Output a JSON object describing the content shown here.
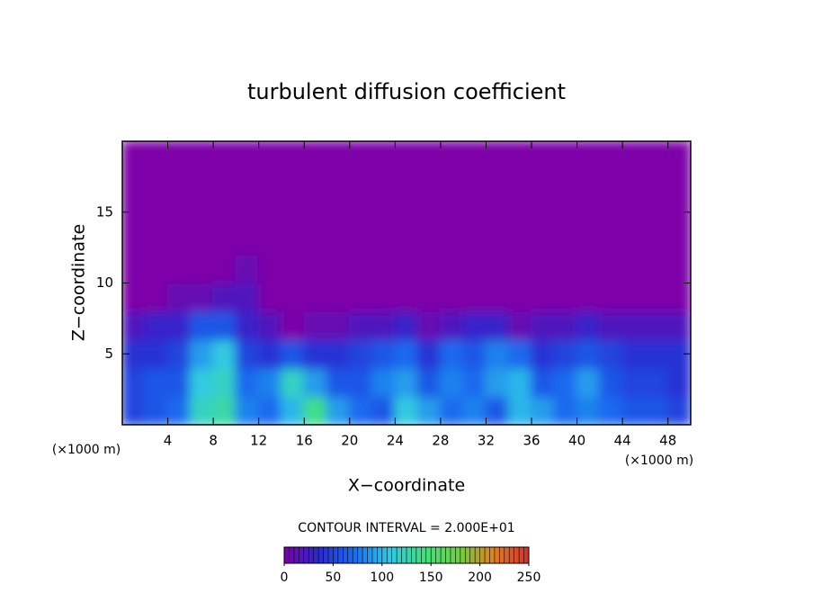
{
  "chart_data": {
    "type": "heatmap",
    "title": "turbulent diffusion coefficient",
    "xlabel": "X−coordinate",
    "ylabel": "Z−coordinate",
    "x_unit": "(×1000 m)",
    "x_unit_right": "(×1000 m)",
    "contour_interval": "CONTOUR INTERVAL = 2.000E+01",
    "xlim": [
      0,
      50
    ],
    "xticks": [
      4,
      8,
      12,
      16,
      20,
      24,
      28,
      32,
      36,
      40,
      44,
      48
    ],
    "ylim": [
      0,
      20
    ],
    "yticks": [
      5,
      10,
      15
    ],
    "x": [
      1,
      3,
      5,
      7,
      9,
      11,
      13,
      15,
      17,
      19,
      21,
      23,
      25,
      27,
      29,
      31,
      33,
      35,
      37,
      39,
      41,
      43,
      45,
      47,
      49
    ],
    "y": [
      1,
      3,
      5,
      7,
      9,
      11,
      13,
      15,
      17,
      19
    ],
    "z": [
      [
        50,
        60,
        70,
        120,
        130,
        80,
        70,
        100,
        140,
        90,
        70,
        60,
        110,
        90,
        70,
        80,
        60,
        100,
        90,
        70,
        80,
        70,
        60,
        60,
        50
      ],
      [
        50,
        60,
        60,
        110,
        120,
        70,
        80,
        120,
        90,
        60,
        60,
        80,
        90,
        60,
        80,
        70,
        90,
        100,
        60,
        70,
        90,
        60,
        50,
        50,
        40
      ],
      [
        40,
        40,
        50,
        90,
        110,
        50,
        40,
        60,
        40,
        40,
        50,
        60,
        70,
        40,
        70,
        60,
        80,
        70,
        40,
        50,
        60,
        50,
        40,
        40,
        40
      ],
      [
        20,
        30,
        30,
        60,
        60,
        30,
        20,
        0,
        10,
        10,
        20,
        20,
        30,
        10,
        20,
        30,
        30,
        10,
        20,
        20,
        30,
        20,
        20,
        20,
        20
      ],
      [
        0,
        0,
        10,
        10,
        20,
        20,
        0,
        0,
        0,
        0,
        0,
        0,
        0,
        0,
        0,
        0,
        0,
        0,
        0,
        0,
        0,
        0,
        0,
        0,
        0
      ],
      [
        0,
        0,
        0,
        0,
        0,
        10,
        0,
        0,
        0,
        0,
        0,
        0,
        0,
        0,
        0,
        0,
        0,
        0,
        0,
        0,
        0,
        0,
        0,
        0,
        0
      ],
      [
        0,
        0,
        0,
        0,
        0,
        0,
        0,
        0,
        0,
        0,
        0,
        0,
        0,
        0,
        0,
        0,
        0,
        0,
        0,
        0,
        0,
        0,
        0,
        0,
        0
      ],
      [
        0,
        0,
        0,
        0,
        0,
        0,
        0,
        0,
        0,
        0,
        0,
        0,
        0,
        0,
        0,
        0,
        0,
        0,
        0,
        0,
        0,
        0,
        0,
        0,
        0
      ],
      [
        0,
        0,
        0,
        0,
        0,
        0,
        0,
        0,
        0,
        0,
        0,
        0,
        0,
        0,
        0,
        0,
        0,
        0,
        0,
        0,
        0,
        0,
        0,
        0,
        0
      ],
      [
        0,
        0,
        0,
        0,
        0,
        0,
        0,
        0,
        0,
        0,
        0,
        0,
        0,
        0,
        0,
        0,
        0,
        0,
        0,
        0,
        0,
        0,
        0,
        0,
        0
      ]
    ],
    "clim": [
      0,
      250
    ],
    "colormap": [
      "#7d00a8",
      "#2a2ad0",
      "#1a6cf0",
      "#30c8e8",
      "#40e080",
      "#70d040",
      "#e08020",
      "#d03030"
    ],
    "colorbar_ticks": [
      0,
      50,
      100,
      150,
      200,
      250
    ]
  }
}
